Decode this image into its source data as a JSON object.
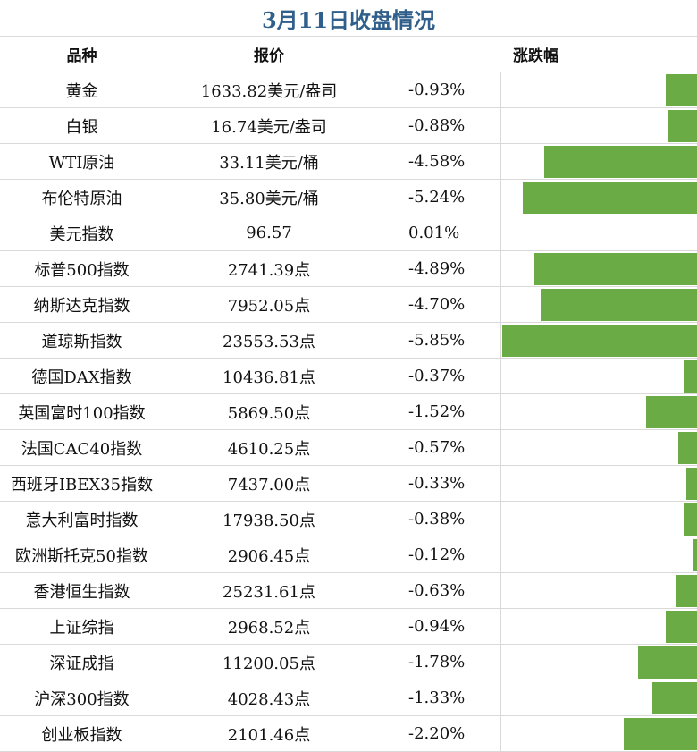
{
  "title": "3月11日收盘情况",
  "headers": {
    "name": "品种",
    "price": "报价",
    "change": "涨跌幅"
  },
  "colors": {
    "title": "#2f5f8a",
    "bar": "#6aab46",
    "grid": "#d9d9d9"
  },
  "chart_data": {
    "type": "table",
    "title": "3月11日收盘情况",
    "columns": [
      "品种",
      "报价",
      "涨跌幅"
    ],
    "rows": [
      {
        "name": "黄金",
        "price": "1633.82美元/盎司",
        "change_text": "-0.93%",
        "change": -0.93
      },
      {
        "name": "白银",
        "price": "16.74美元/盎司",
        "change_text": "-0.88%",
        "change": -0.88
      },
      {
        "name": "WTI原油",
        "price": "33.11美元/桶",
        "change_text": "-4.58%",
        "change": -4.58
      },
      {
        "name": "布伦特原油",
        "price": "35.80美元/桶",
        "change_text": "-5.24%",
        "change": -5.24
      },
      {
        "name": "美元指数",
        "price": "96.57",
        "change_text": "0.01%",
        "change": 0.01
      },
      {
        "name": "标普500指数",
        "price": "2741.39点",
        "change_text": "-4.89%",
        "change": -4.89
      },
      {
        "name": "纳斯达克指数",
        "price": "7952.05点",
        "change_text": "-4.70%",
        "change": -4.7
      },
      {
        "name": "道琼斯指数",
        "price": "23553.53点",
        "change_text": "-5.85%",
        "change": -5.85
      },
      {
        "name": "德国DAX指数",
        "price": "10436.81点",
        "change_text": "-0.37%",
        "change": -0.37
      },
      {
        "name": "英国富时100指数",
        "price": "5869.50点",
        "change_text": "-1.52%",
        "change": -1.52
      },
      {
        "name": "法国CAC40指数",
        "price": "4610.25点",
        "change_text": "-0.57%",
        "change": -0.57
      },
      {
        "name": "西班牙IBEX35指数",
        "price": "7437.00点",
        "change_text": "-0.33%",
        "change": -0.33
      },
      {
        "name": "意大利富时指数",
        "price": "17938.50点",
        "change_text": "-0.38%",
        "change": -0.38
      },
      {
        "name": "欧洲斯托克50指数",
        "price": "2906.45点",
        "change_text": "-0.12%",
        "change": -0.12
      },
      {
        "name": "香港恒生指数",
        "price": "25231.61点",
        "change_text": "-0.63%",
        "change": -0.63
      },
      {
        "name": "上证综指",
        "price": "2968.52点",
        "change_text": "-0.94%",
        "change": -0.94
      },
      {
        "name": "深证成指",
        "price": "11200.05点",
        "change_text": "-1.78%",
        "change": -1.78
      },
      {
        "name": "沪深300指数",
        "price": "4028.43点",
        "change_text": "-1.33%",
        "change": -1.33
      },
      {
        "name": "创业板指数",
        "price": "2101.46点",
        "change_text": "-2.20%",
        "change": -2.2
      }
    ]
  }
}
